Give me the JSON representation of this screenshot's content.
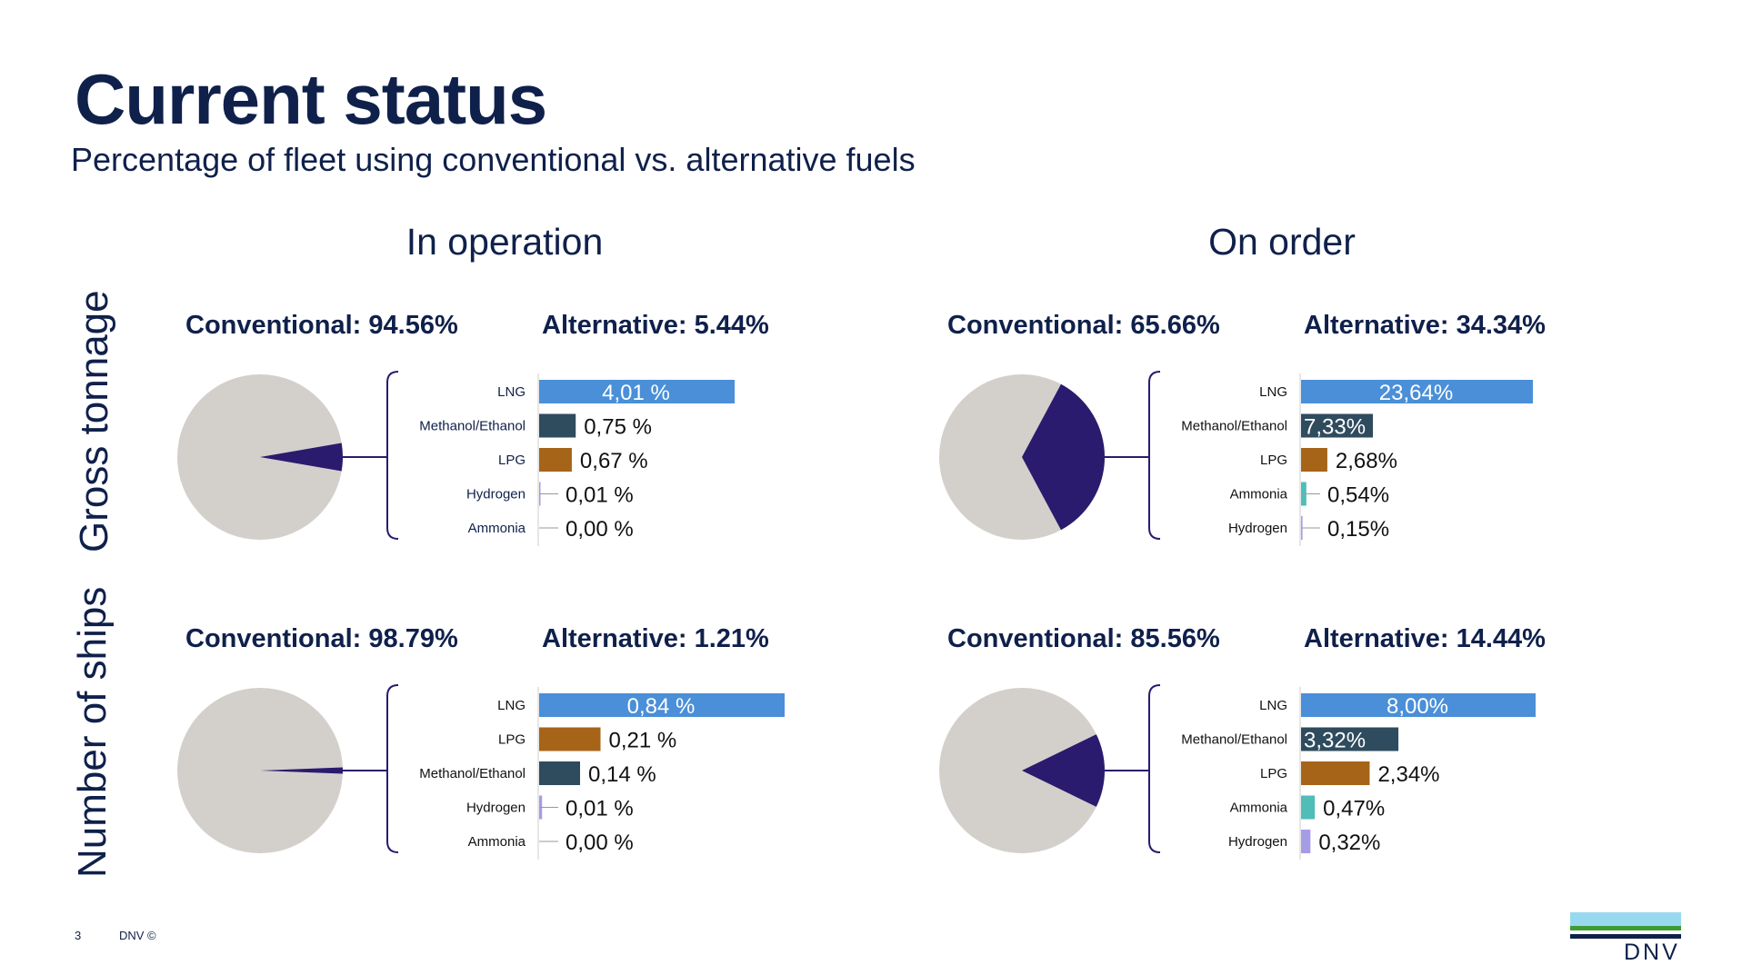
{
  "title": "Current status",
  "subtitle": "Percentage of fleet using conventional vs. alternative fuels",
  "columns": {
    "operation": "In operation",
    "order": "On order"
  },
  "rows": {
    "tonnage": "Gross tonnage",
    "ships": "Number of ships"
  },
  "footer": {
    "page": "3",
    "copyright": "DNV ©"
  },
  "logo": {
    "text": "DNV"
  },
  "colors": {
    "conventional": "#d3d0cc",
    "alternative": "#2a1b6e",
    "LNG": "#4a8fd8",
    "Methanol/Ethanol": "#2f4b5e",
    "LPG": "#a66418",
    "Hydrogen": "#a59ce6",
    "Ammonia": "#4fbdb8"
  },
  "chart_data": [
    {
      "type": "pie",
      "title": "",
      "slices": [
        {
          "label": "Conventional",
          "value": 94.56,
          "display": "Conventional: 94.56%"
        },
        {
          "label": "Alternative",
          "value": 5.44,
          "display": "Alternative: 5.44%"
        }
      ],
      "breakdown": {
        "type": "bar",
        "categories": [
          "LNG",
          "Methanol/Ethanol",
          "LPG",
          "Hydrogen",
          "Ammonia"
        ],
        "values": [
          4.01,
          0.75,
          0.67,
          0.01,
          0.0
        ],
        "labels": [
          "4,01 %",
          "0,75 %",
          "0,67 %",
          "0,01 %",
          "0,00 %"
        ]
      }
    },
    {
      "type": "pie",
      "title": "",
      "slices": [
        {
          "label": "Conventional",
          "value": 65.66,
          "display": "Conventional: 65.66%"
        },
        {
          "label": "Alternative",
          "value": 34.34,
          "display": "Alternative: 34.34%"
        }
      ],
      "breakdown": {
        "type": "bar",
        "categories": [
          "LNG",
          "Methanol/Ethanol",
          "LPG",
          "Ammonia",
          "Hydrogen"
        ],
        "values": [
          23.64,
          7.33,
          2.68,
          0.54,
          0.15
        ],
        "labels": [
          "23,64%",
          "7,33%",
          "2,68%",
          "0,54%",
          "0,15%"
        ]
      }
    },
    {
      "type": "pie",
      "title": "",
      "slices": [
        {
          "label": "Conventional",
          "value": 98.79,
          "display": "Conventional: 98.79%"
        },
        {
          "label": "Alternative",
          "value": 1.21,
          "display": "Alternative: 1.21%"
        }
      ],
      "breakdown": {
        "type": "bar",
        "categories": [
          "LNG",
          "LPG",
          "Methanol/Ethanol",
          "Hydrogen",
          "Ammonia"
        ],
        "values": [
          0.84,
          0.21,
          0.14,
          0.01,
          0.0
        ],
        "labels": [
          "0,84 %",
          "0,21 %",
          "0,14 %",
          "0,01 %",
          "0,00 %"
        ]
      }
    },
    {
      "type": "pie",
      "title": "",
      "slices": [
        {
          "label": "Conventional",
          "value": 85.56,
          "display": "Conventional: 85.56%"
        },
        {
          "label": "Alternative",
          "value": 14.44,
          "display": "Alternative: 14.44%"
        }
      ],
      "breakdown": {
        "type": "bar",
        "categories": [
          "LNG",
          "Methanol/Ethanol",
          "LPG",
          "Ammonia",
          "Hydrogen"
        ],
        "values": [
          8.0,
          3.32,
          2.34,
          0.47,
          0.32
        ],
        "labels": [
          "8,00%",
          "3,32%",
          "2,34%",
          "0,47%",
          "0,32%"
        ]
      }
    }
  ]
}
